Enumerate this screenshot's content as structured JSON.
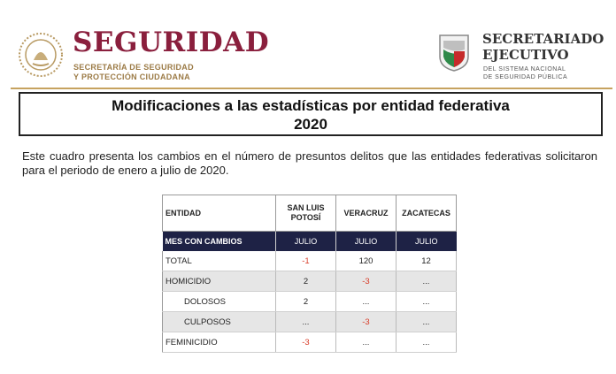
{
  "header": {
    "brand_title": "SEGURIDAD",
    "brand_sub_line1": "SECRETARÍA DE SEGURIDAD",
    "brand_sub_line2": "Y PROTECCIÓN CIUDADANA",
    "se_title_line1": "SECRETARIADO",
    "se_title_line2": "EJECUTIVO",
    "se_sub_line1": "DEL SISTEMA NACIONAL",
    "se_sub_line2": "DE SEGURIDAD PÚBLICA",
    "colors": {
      "brand": "#8a1f3d",
      "gold": "#9b7a45",
      "table_header_band": "#1e2245",
      "negative": "#d83a26"
    }
  },
  "document": {
    "title_line1": "Modificaciones a las estadísticas por entidad federativa",
    "title_line2": "2020",
    "intro": "Este cuadro presenta los cambios en el número de presuntos delitos que las entidades federativas solicitaron para el periodo de enero a julio de 2020."
  },
  "table": {
    "header_entity": "ENTIDAD",
    "columns": [
      {
        "line1": "SAN LUIS",
        "line2": "POTOSÍ"
      },
      {
        "line1": "VERACRUZ",
        "line2": ""
      },
      {
        "line1": "ZACATECAS",
        "line2": ""
      }
    ],
    "months_label": "MES CON CAMBIOS",
    "months": [
      "JULIO",
      "JULIO",
      "JULIO"
    ],
    "rows": [
      {
        "label": "TOTAL",
        "values": [
          "-1",
          "120",
          "12"
        ],
        "indent": false,
        "shade": false
      },
      {
        "label": "HOMICIDIO",
        "values": [
          "2",
          "-3",
          "..."
        ],
        "indent": false,
        "shade": true
      },
      {
        "label": "DOLOSOS",
        "values": [
          "2",
          "...",
          "..."
        ],
        "indent": true,
        "shade": false
      },
      {
        "label": "CULPOSOS",
        "values": [
          "...",
          "-3",
          "..."
        ],
        "indent": true,
        "shade": true
      },
      {
        "label": "FEMINICIDIO",
        "values": [
          "-3",
          "...",
          "..."
        ],
        "indent": false,
        "shade": false
      }
    ]
  }
}
